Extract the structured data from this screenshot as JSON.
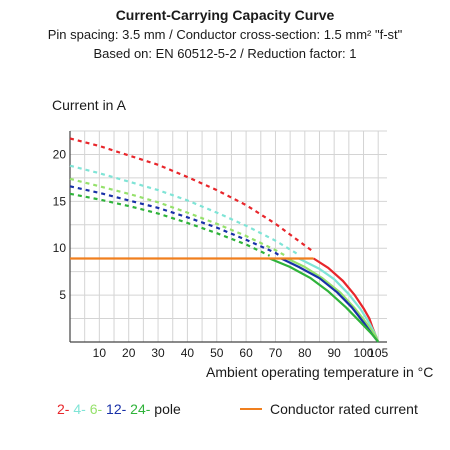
{
  "chart_data": {
    "type": "line",
    "title": "Current-Carrying Capacity Curve",
    "subtitle_lines": [
      "Pin spacing: 3.5 mm / Conductor cross-section: 1.5 mm² \"f-st\"",
      "Based on: EN 60512-5-2 / Reduction factor: 1"
    ],
    "ylabel": "Current in A",
    "xlabel": "Ambient operating temperature in °C",
    "xlim": [
      0,
      108
    ],
    "ylim": [
      0,
      22.5
    ],
    "x_ticks": [
      10,
      20,
      30,
      40,
      50,
      60,
      70,
      80,
      90,
      100,
      105
    ],
    "y_ticks": [
      5,
      10,
      15,
      20
    ],
    "grid": true,
    "legend": {
      "poles_parts": [
        "2-",
        "4-",
        "6-",
        "12-",
        "24-"
      ],
      "poles_suffix": " pole",
      "rated_current_label": "Conductor rated current"
    },
    "series": [
      {
        "name": "2-",
        "color": "#e8262b",
        "dashed": [
          [
            0,
            21.7
          ],
          [
            10,
            20.9
          ],
          [
            20,
            19.9
          ],
          [
            30,
            18.9
          ],
          [
            40,
            17.6
          ],
          [
            50,
            16.2
          ],
          [
            60,
            14.6
          ],
          [
            70,
            12.6
          ],
          [
            80,
            10.3
          ],
          [
            83,
            9.6
          ]
        ],
        "solid": [
          [
            83,
            8.9
          ],
          [
            88,
            7.9
          ],
          [
            93,
            6.5
          ],
          [
            97,
            5.0
          ],
          [
            100,
            3.6
          ],
          [
            102,
            2.5
          ],
          [
            103,
            1.6
          ],
          [
            104,
            0.8
          ],
          [
            105,
            0
          ]
        ]
      },
      {
        "name": "4-",
        "color": "#7fe4d6",
        "dashed": [
          [
            0,
            18.8
          ],
          [
            10,
            18.0
          ],
          [
            20,
            17.1
          ],
          [
            30,
            16.2
          ],
          [
            40,
            15.1
          ],
          [
            50,
            13.8
          ],
          [
            60,
            12.4
          ],
          [
            70,
            10.8
          ],
          [
            78,
            9.3
          ]
        ],
        "solid": [
          [
            78,
            8.9
          ],
          [
            85,
            7.8
          ],
          [
            90,
            6.7
          ],
          [
            95,
            5.1
          ],
          [
            99,
            3.5
          ],
          [
            102,
            2.0
          ],
          [
            104,
            0.8
          ],
          [
            105,
            0
          ]
        ]
      },
      {
        "name": "6-",
        "color": "#95e16b",
        "dashed": [
          [
            0,
            17.4
          ],
          [
            10,
            16.6
          ],
          [
            20,
            15.8
          ],
          [
            30,
            14.9
          ],
          [
            40,
            13.8
          ],
          [
            50,
            12.6
          ],
          [
            60,
            11.3
          ],
          [
            70,
            9.8
          ],
          [
            74,
            9.1
          ]
        ],
        "solid": [
          [
            74,
            8.9
          ],
          [
            80,
            8.0
          ],
          [
            86,
            6.8
          ],
          [
            92,
            5.3
          ],
          [
            97,
            3.6
          ],
          [
            101,
            2.0
          ],
          [
            104,
            0.7
          ],
          [
            105,
            0
          ]
        ]
      },
      {
        "name": "12-",
        "color": "#1830a8",
        "dashed": [
          [
            0,
            16.6
          ],
          [
            10,
            15.9
          ],
          [
            20,
            15.1
          ],
          [
            30,
            14.3
          ],
          [
            40,
            13.3
          ],
          [
            50,
            12.2
          ],
          [
            60,
            10.9
          ],
          [
            70,
            9.5
          ],
          [
            72,
            9.1
          ]
        ],
        "solid": [
          [
            72,
            8.9
          ],
          [
            78,
            8.0
          ],
          [
            85,
            6.8
          ],
          [
            91,
            5.3
          ],
          [
            96,
            3.7
          ],
          [
            100,
            2.1
          ],
          [
            103,
            0.8
          ],
          [
            105,
            0
          ]
        ]
      },
      {
        "name": "24-",
        "color": "#2fb33a",
        "dashed": [
          [
            0,
            15.8
          ],
          [
            10,
            15.2
          ],
          [
            20,
            14.5
          ],
          [
            30,
            13.7
          ],
          [
            40,
            12.7
          ],
          [
            50,
            11.6
          ],
          [
            60,
            10.4
          ],
          [
            68,
            9.2
          ]
        ],
        "solid": [
          [
            68,
            8.9
          ],
          [
            75,
            8.0
          ],
          [
            82,
            6.8
          ],
          [
            88,
            5.4
          ],
          [
            94,
            3.7
          ],
          [
            99,
            2.1
          ],
          [
            103,
            0.8
          ],
          [
            105,
            0
          ]
        ]
      },
      {
        "name": "Conductor rated current",
        "color": "#f07f1e",
        "solid": [
          [
            0,
            8.9
          ],
          [
            83,
            8.9
          ]
        ]
      }
    ]
  }
}
